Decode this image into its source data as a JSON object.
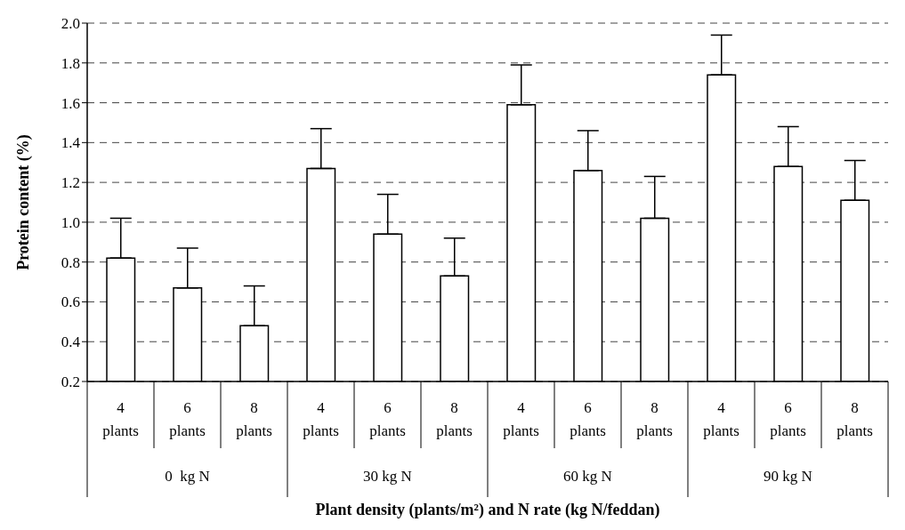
{
  "chart_data": {
    "type": "bar",
    "xlabel": "Plant density (plants/m²) and N rate (kg N/feddan)",
    "ylabel": "Protein content (%)",
    "categories": [
      "4 plants",
      "6 plants",
      "8 plants",
      "4 plants",
      "6 plants",
      "8 plants",
      "4 plants",
      "6 plants",
      "8 plants",
      "4 plants",
      "6 plants",
      "8 plants"
    ],
    "values": [
      0.82,
      0.67,
      0.48,
      1.27,
      0.94,
      0.73,
      1.59,
      1.26,
      1.02,
      1.74,
      1.28,
      1.11
    ],
    "errors": [
      [
        0.82,
        1.02
      ],
      [
        0.67,
        0.87
      ],
      [
        0.48,
        0.68
      ],
      [
        1.27,
        1.47
      ],
      [
        0.94,
        1.14
      ],
      [
        0.73,
        0.92
      ],
      [
        1.59,
        1.79
      ],
      [
        1.26,
        1.46
      ],
      [
        1.02,
        1.23
      ],
      [
        1.74,
        1.94
      ],
      [
        1.28,
        1.48
      ],
      [
        1.11,
        1.31
      ]
    ],
    "color": "#ffffff",
    "annotations": [
      "0  kg N",
      "30 kg N",
      "60 kg N",
      "90 kg N"
    ],
    "ylim": [
      0.2,
      2.0
    ],
    "yticks": [
      {
        "value": 0.2,
        "label": "0.2"
      },
      {
        "value": 0.4,
        "label": "0.4"
      },
      {
        "value": 0.6,
        "label": "0.6"
      },
      {
        "value": 0.8,
        "label": "0.8"
      },
      {
        "value": 1.0,
        "label": "1.0"
      },
      {
        "value": 1.2,
        "label": "1.2"
      },
      {
        "value": 1.4,
        "label": "1.4"
      },
      {
        "value": 1.6,
        "label": "1.6"
      },
      {
        "value": 1.8,
        "label": "1.8"
      },
      {
        "value": 2.0,
        "label": "2.0"
      }
    ],
    "grid": "y",
    "legend": false
  }
}
